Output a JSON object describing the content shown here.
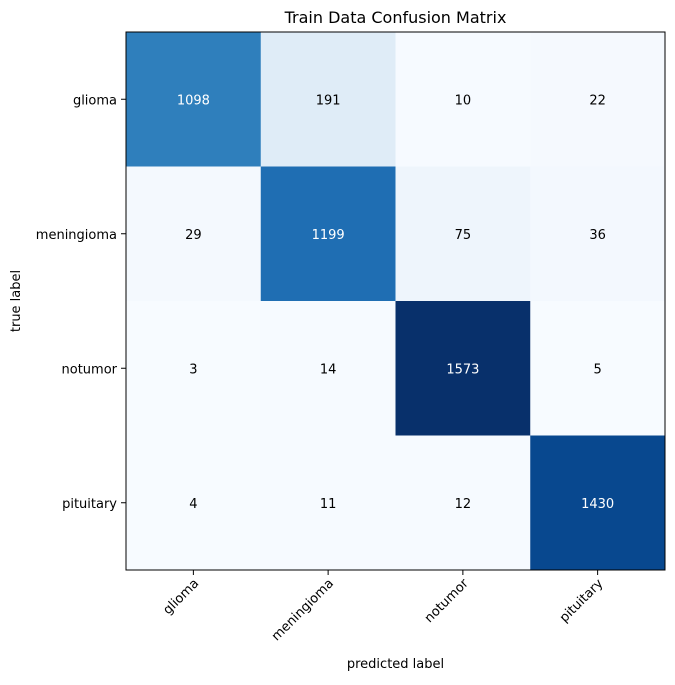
{
  "chart_data": {
    "type": "heatmap",
    "title": "Train Data Confusion Matrix",
    "xlabel": "predicted label",
    "ylabel": "true label",
    "x_categories": [
      "glioma",
      "meningioma",
      "notumor",
      "pituitary"
    ],
    "y_categories": [
      "glioma",
      "meningioma",
      "notumor",
      "pituitary"
    ],
    "values": [
      [
        1098,
        191,
        10,
        22
      ],
      [
        29,
        1199,
        75,
        36
      ],
      [
        3,
        14,
        1573,
        5
      ],
      [
        4,
        11,
        12,
        1430
      ]
    ],
    "colormap": "Blues",
    "x_tick_rotation_deg": 45,
    "grid": false
  }
}
